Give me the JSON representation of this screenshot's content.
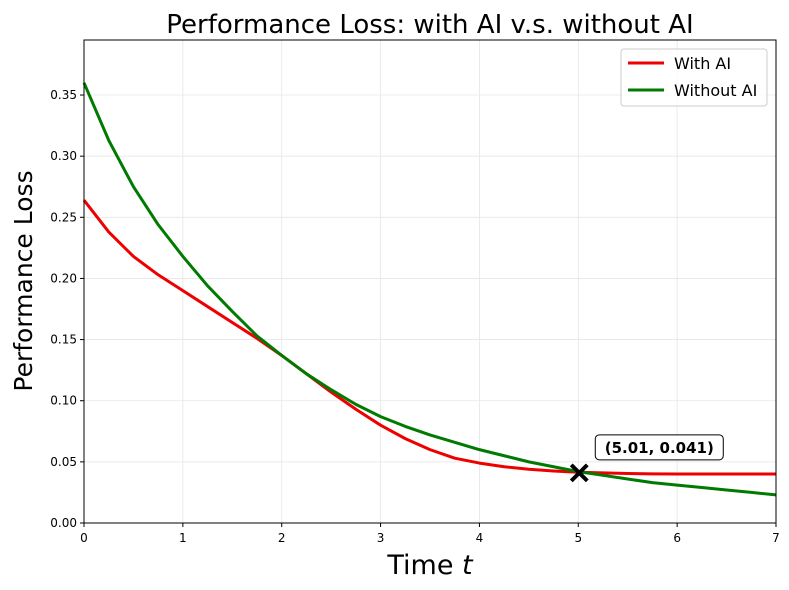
{
  "chart_data": {
    "type": "line",
    "title": "Performance Loss: with AI v.s. without AI",
    "xlabel_main": "Time ",
    "xlabel_var": "t",
    "ylabel": "Performance Loss",
    "xlim": [
      0,
      7
    ],
    "ylim": [
      0,
      0.395
    ],
    "xticks": [
      0,
      1,
      2,
      3,
      4,
      5,
      6,
      7
    ],
    "xtick_labels": [
      "0",
      "1",
      "2",
      "3",
      "4",
      "5",
      "6",
      "7"
    ],
    "yticks": [
      0,
      0.05,
      0.1,
      0.15,
      0.2,
      0.25,
      0.3,
      0.35
    ],
    "ytick_labels": [
      "0.00",
      "0.05",
      "0.10",
      "0.15",
      "0.20",
      "0.25",
      "0.30",
      "0.35"
    ],
    "grid": true,
    "legend_position": "top-right",
    "series": [
      {
        "name": "With AI",
        "color": "#ee0000",
        "x": [
          0,
          0.25,
          0.5,
          0.75,
          1,
          1.25,
          1.5,
          1.75,
          2,
          2.25,
          2.5,
          2.75,
          3,
          3.25,
          3.5,
          3.75,
          4,
          4.25,
          4.5,
          4.75,
          5,
          5.25,
          5.5,
          5.75,
          6,
          6.25,
          6.5,
          6.75,
          7
        ],
        "y": [
          0.264,
          0.238,
          0.218,
          0.203,
          0.19,
          0.177,
          0.164,
          0.151,
          0.137,
          0.122,
          0.107,
          0.093,
          0.08,
          0.069,
          0.06,
          0.053,
          0.049,
          0.046,
          0.044,
          0.0425,
          0.0415,
          0.041,
          0.0405,
          0.0402,
          0.0401,
          0.0401,
          0.0401,
          0.0401,
          0.0401
        ]
      },
      {
        "name": "Without AI",
        "color": "#007a00",
        "x": [
          0,
          0.25,
          0.5,
          0.75,
          1,
          1.25,
          1.5,
          1.75,
          2,
          2.25,
          2.5,
          2.75,
          3,
          3.25,
          3.5,
          3.75,
          4,
          4.25,
          4.5,
          4.75,
          5,
          5.25,
          5.5,
          5.75,
          6,
          6.25,
          6.5,
          6.75,
          7
        ],
        "y": [
          0.36,
          0.313,
          0.275,
          0.244,
          0.218,
          0.194,
          0.173,
          0.153,
          0.137,
          0.122,
          0.109,
          0.097,
          0.087,
          0.079,
          0.072,
          0.066,
          0.06,
          0.055,
          0.05,
          0.046,
          0.042,
          0.039,
          0.036,
          0.033,
          0.031,
          0.029,
          0.027,
          0.025,
          0.023
        ]
      }
    ],
    "marker": {
      "x": 5.01,
      "y": 0.041,
      "label": "(5.01, 0.041)",
      "color": "#000000"
    }
  }
}
